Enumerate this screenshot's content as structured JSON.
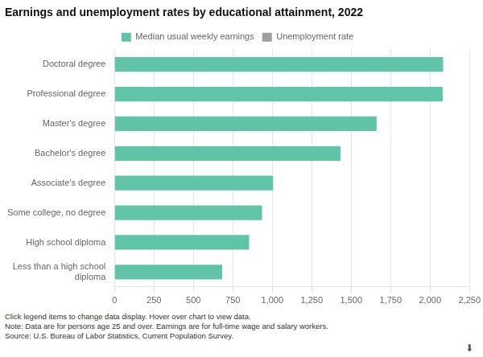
{
  "chart_data": {
    "type": "bar",
    "orientation": "horizontal",
    "title": "Earnings and unemployment rates by educational attainment, 2022",
    "categories": [
      "Doctoral degree",
      "Professional degree",
      "Master's degree",
      "Bachelor's degree",
      "Associate's degree",
      "Some college, no degree",
      "High school diploma",
      "Less than a high school\ndiploma"
    ],
    "series": [
      {
        "name": "Median usual weekly earnings",
        "color": "#5fc4a8",
        "values": [
          2083,
          2080,
          1661,
          1432,
          1005,
          935,
          853,
          682
        ]
      },
      {
        "name": "Unemployment rate",
        "color": "#9e9e9e",
        "values": [
          null,
          null,
          null,
          null,
          null,
          null,
          null,
          null
        ]
      }
    ],
    "xlim": [
      0,
      2250
    ],
    "xticks": [
      0,
      250,
      500,
      750,
      {
        "value": 1000,
        "label": "1,000"
      },
      {
        "value": 1250,
        "label": "1,250"
      },
      {
        "value": 1500,
        "label": "1,500"
      },
      {
        "value": 1750,
        "label": "1,750"
      },
      {
        "value": 2000,
        "label": "2,000"
      },
      {
        "value": 2250,
        "label": "2,250"
      }
    ],
    "grid": true,
    "legend": "top",
    "annotations": [
      "Click legend items to change data display. Hover over chart to view data.",
      "Note: Data are for persons age 25 and over. Earnings are for full-time wage and salary workers.",
      "Source: U.S. Bureau of Labor Statistics, Current Population Survey.",
      "⬇"
    ]
  }
}
